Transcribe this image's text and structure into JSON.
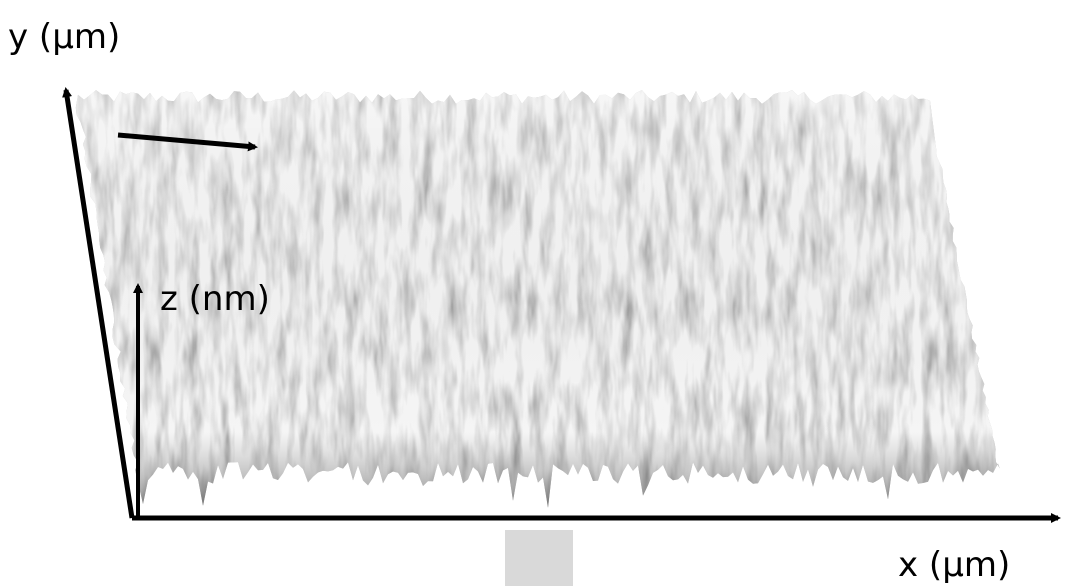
{
  "axes": {
    "y_label": "y (μm)",
    "z_label": "z (nm)",
    "x_label": "x (μm)"
  }
}
